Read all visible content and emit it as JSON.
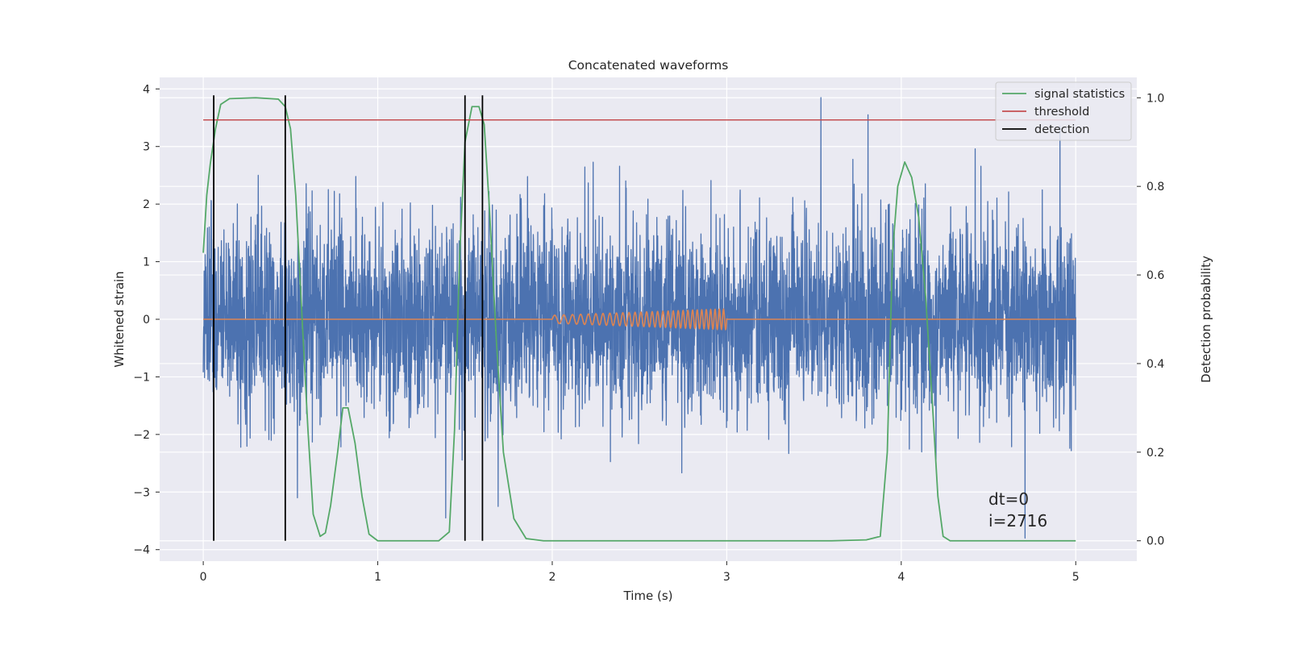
{
  "chart_data": {
    "type": "line",
    "title": "Concatenated waveforms",
    "xlabel": "Time (s)",
    "ylabel": "Whitened strain",
    "y2label": "Detection probability",
    "xlim": [
      -0.25,
      5.35
    ],
    "ylim": [
      -4.2,
      4.2
    ],
    "y2lim": [
      -0.046,
      1.046
    ],
    "x_ticks": [
      0,
      1,
      2,
      3,
      4,
      5
    ],
    "y_ticks": [
      -4,
      -3,
      -2,
      -1,
      0,
      1,
      2,
      3,
      4
    ],
    "y2_ticks": [
      0.0,
      0.2,
      0.4,
      0.6,
      0.8,
      1.0
    ],
    "x_tick_labels": [
      "0",
      "1",
      "2",
      "3",
      "4",
      "5"
    ],
    "y_tick_labels": [
      "−4",
      "−3",
      "−2",
      "−1",
      "0",
      "1",
      "2",
      "3",
      "4"
    ],
    "y2_tick_labels": [
      "0.0",
      "0.2",
      "0.4",
      "0.6",
      "0.8",
      "1.0"
    ],
    "grid": true,
    "legend_position": "top-right",
    "series": [
      {
        "name": "",
        "axis": "left",
        "color": "#4c72b0",
        "kind": "noise",
        "x_range": [
          0,
          5
        ],
        "samples": 4096,
        "typical_std": 0.85,
        "peaks": [
          [
            3.54,
            3.85
          ],
          [
            3.81,
            3.55
          ],
          [
            4.71,
            -3.8
          ],
          [
            1.39,
            -3.45
          ],
          [
            1.69,
            -3.25
          ],
          [
            0.54,
            -3.1
          ],
          [
            4.91,
            3.35
          ]
        ]
      },
      {
        "name": "",
        "axis": "left",
        "color": "#dd8452",
        "kind": "chirp",
        "x_range": [
          0,
          5
        ],
        "chirp_range": [
          2.0,
          3.0
        ],
        "amplitude": [
          0.07,
          0.18
        ],
        "frequency_hz": [
          18,
          42
        ]
      },
      {
        "name": "signal statistics",
        "axis": "right",
        "color": "#55a868",
        "points": [
          [
            0.0,
            0.65
          ],
          [
            0.02,
            0.78
          ],
          [
            0.04,
            0.85
          ],
          [
            0.07,
            0.93
          ],
          [
            0.1,
            0.985
          ],
          [
            0.15,
            0.998
          ],
          [
            0.3,
            1.0
          ],
          [
            0.43,
            0.997
          ],
          [
            0.47,
            0.98
          ],
          [
            0.5,
            0.93
          ],
          [
            0.53,
            0.78
          ],
          [
            0.56,
            0.55
          ],
          [
            0.6,
            0.25
          ],
          [
            0.63,
            0.06
          ],
          [
            0.67,
            0.01
          ],
          [
            0.7,
            0.018
          ],
          [
            0.73,
            0.08
          ],
          [
            0.77,
            0.2
          ],
          [
            0.8,
            0.3
          ],
          [
            0.83,
            0.3
          ],
          [
            0.87,
            0.22
          ],
          [
            0.91,
            0.1
          ],
          [
            0.95,
            0.015
          ],
          [
            1.0,
            0.0
          ],
          [
            1.35,
            0.0
          ],
          [
            1.41,
            0.02
          ],
          [
            1.44,
            0.25
          ],
          [
            1.47,
            0.65
          ],
          [
            1.5,
            0.9
          ],
          [
            1.54,
            0.98
          ],
          [
            1.58,
            0.98
          ],
          [
            1.61,
            0.94
          ],
          [
            1.64,
            0.75
          ],
          [
            1.68,
            0.45
          ],
          [
            1.72,
            0.2
          ],
          [
            1.78,
            0.05
          ],
          [
            1.85,
            0.005
          ],
          [
            1.95,
            0.0
          ],
          [
            3.6,
            0.0
          ],
          [
            3.8,
            0.002
          ],
          [
            3.88,
            0.01
          ],
          [
            3.92,
            0.2
          ],
          [
            3.95,
            0.65
          ],
          [
            3.98,
            0.8
          ],
          [
            4.02,
            0.855
          ],
          [
            4.06,
            0.82
          ],
          [
            4.1,
            0.73
          ],
          [
            4.14,
            0.55
          ],
          [
            4.18,
            0.3
          ],
          [
            4.21,
            0.1
          ],
          [
            4.24,
            0.01
          ],
          [
            4.28,
            0.0
          ],
          [
            5.0,
            0.0
          ]
        ]
      },
      {
        "name": "threshold",
        "axis": "right",
        "color": "#c44e52",
        "value": 0.95,
        "x_range": [
          0,
          5
        ]
      }
    ],
    "detections": {
      "name": "detection",
      "color": "#000000",
      "x": [
        0.06,
        0.47,
        1.5,
        1.6
      ]
    },
    "annotations": [
      "dt=0",
      "i=2716"
    ]
  }
}
